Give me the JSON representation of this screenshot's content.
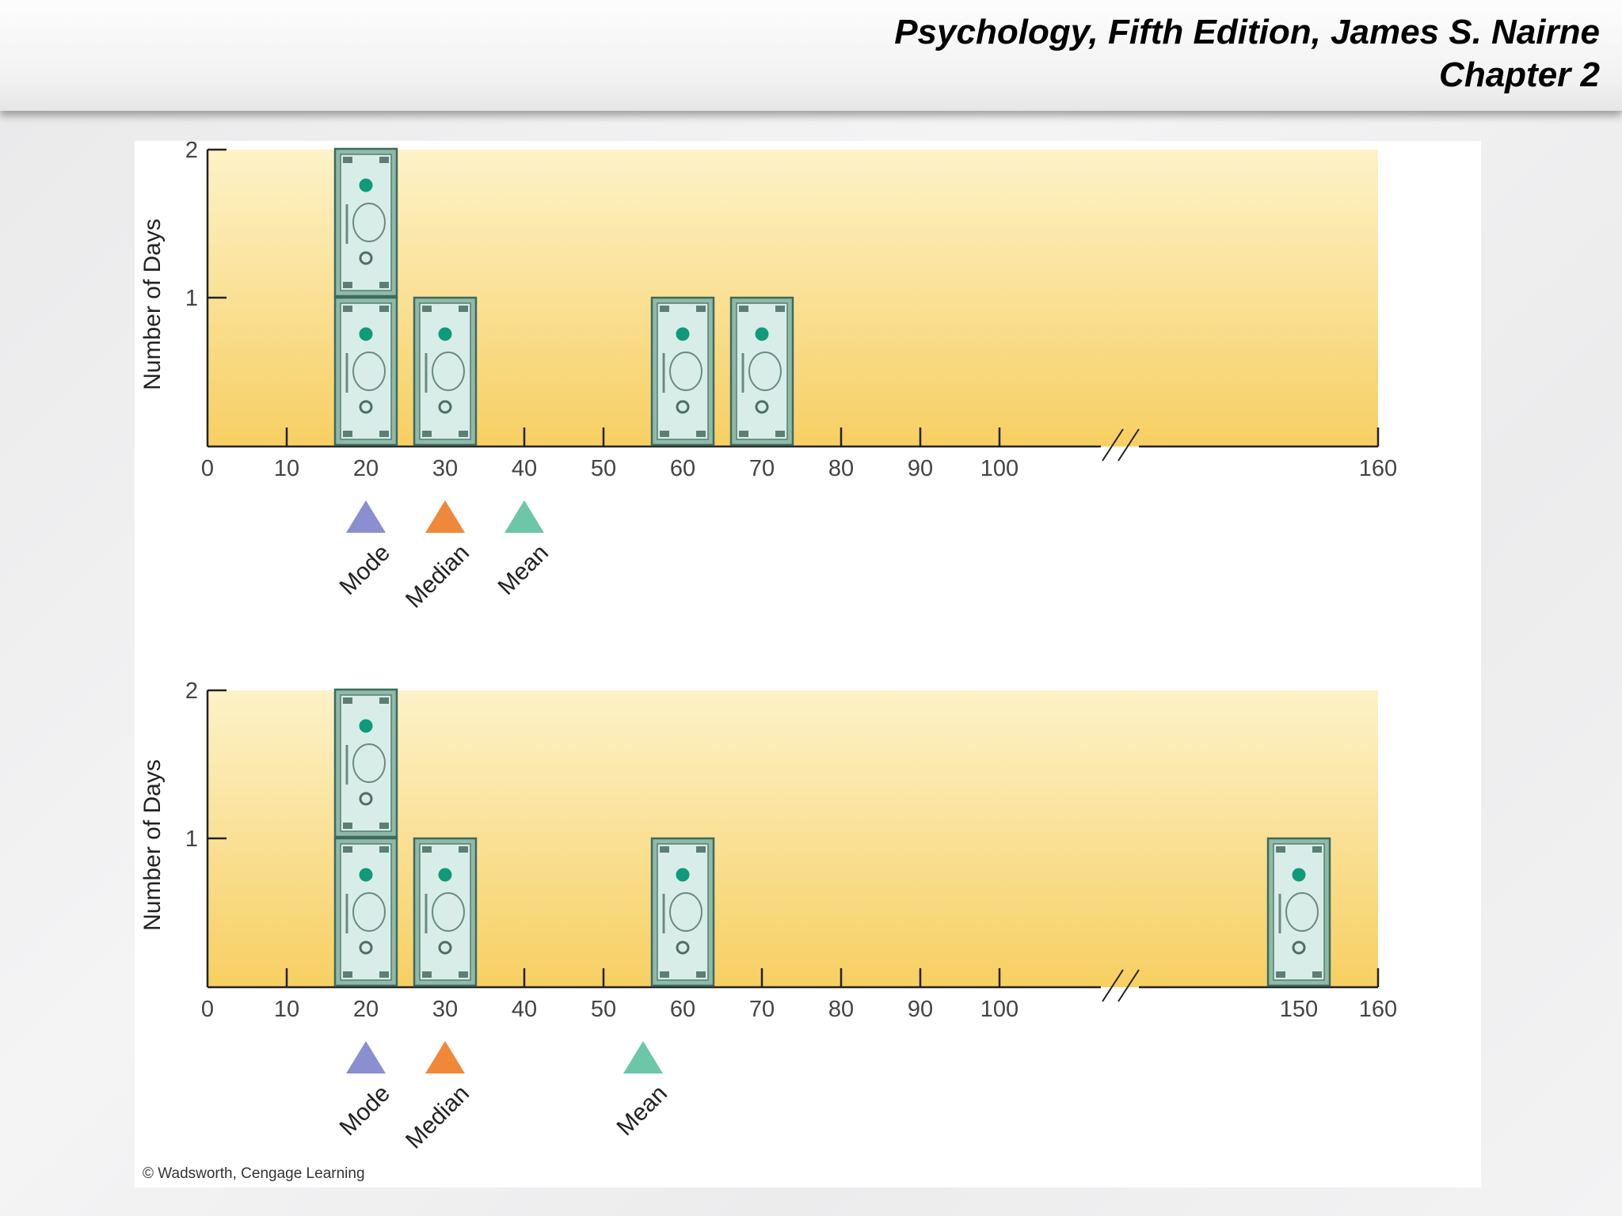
{
  "header": {
    "line1": "Psychology, Fifth Edition, James S. Nairne",
    "line2": "Chapter 2"
  },
  "footer": {
    "credit": "© Wadsworth, Cengage Learning"
  },
  "colors": {
    "mode": "#8a8fd0",
    "median": "#f0883a",
    "mean": "#6cc6a8",
    "bill_face": "#d9ede8",
    "bill_frame": "#3f6a5c",
    "bill_dot": "#0f9a7a",
    "plot_top": "#fdf2c8",
    "plot_bottom": "#f7cf62"
  },
  "chart_data": [
    {
      "type": "bar",
      "ylabel": "Number of Days",
      "ylim": [
        0,
        2
      ],
      "yticks": [
        "1",
        "2"
      ],
      "xticks": [
        "0",
        "10",
        "20",
        "30",
        "40",
        "50",
        "60",
        "70",
        "80",
        "90",
        "100",
        "160"
      ],
      "axis_break": true,
      "icon": "dollar-bill-icon",
      "x": [
        20,
        30,
        60,
        70
      ],
      "counts": [
        2,
        1,
        1,
        1
      ],
      "markers": [
        {
          "label": "Mode",
          "value": 20,
          "color": "#8a8fd0"
        },
        {
          "label": "Median",
          "value": 30,
          "color": "#f0883a"
        },
        {
          "label": "Mean",
          "value": 40,
          "color": "#6cc6a8"
        }
      ]
    },
    {
      "type": "bar",
      "ylabel": "Number of Days",
      "ylim": [
        0,
        2
      ],
      "yticks": [
        "1",
        "2"
      ],
      "xticks": [
        "0",
        "10",
        "20",
        "30",
        "40",
        "50",
        "60",
        "70",
        "80",
        "90",
        "100",
        "150",
        "160"
      ],
      "axis_break": true,
      "icon": "dollar-bill-icon",
      "x": [
        20,
        30,
        60,
        150
      ],
      "counts": [
        2,
        1,
        1,
        1
      ],
      "markers": [
        {
          "label": "Mode",
          "value": 20,
          "color": "#8a8fd0"
        },
        {
          "label": "Median",
          "value": 30,
          "color": "#f0883a"
        },
        {
          "label": "Mean",
          "value": 55,
          "color": "#6cc6a8"
        }
      ]
    }
  ]
}
